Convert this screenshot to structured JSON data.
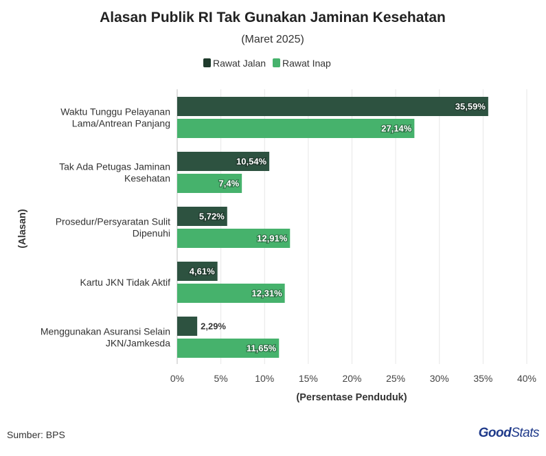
{
  "chart_data": {
    "type": "bar",
    "orientation": "horizontal",
    "title": "Alasan Publik RI Tak Gunakan Jaminan Kesehatan",
    "subtitle": "(Maret 2025)",
    "xlabel": "(Persentase Penduduk)",
    "ylabel": "(Alasan)",
    "xlim": [
      0,
      40
    ],
    "x_ticks": [
      "0%",
      "5%",
      "10%",
      "15%",
      "20%",
      "25%",
      "30%",
      "35%",
      "40%"
    ],
    "grid": true,
    "legend_position": "top-center",
    "categories": [
      [
        "Waktu Tunggu Pelayanan",
        "Lama/Antrean Panjang"
      ],
      [
        "Tak Ada Petugas Jaminan",
        "Kesehatan"
      ],
      [
        "Prosedur/Persyaratan Sulit",
        "Dipenuhi"
      ],
      [
        "Kartu JKN Tidak Aktif"
      ],
      [
        "Menggunakan Asuransi Selain",
        "JKN/Jamkesda"
      ]
    ],
    "series": [
      {
        "name": "Rawat Jalan",
        "color": "#2d5240",
        "values": [
          35.59,
          10.54,
          5.72,
          4.61,
          2.29
        ],
        "labels": [
          "35,59%",
          "10,54%",
          "5,72%",
          "4,61%",
          "2,29%"
        ]
      },
      {
        "name": "Rawat Inap",
        "color": "#46b26c",
        "values": [
          27.14,
          7.4,
          12.91,
          12.31,
          11.65
        ],
        "labels": [
          "27,14%",
          "7,4%",
          "12,91%",
          "12,31%",
          "11,65%"
        ]
      }
    ]
  },
  "legend_colors": {
    "Rawat Jalan": "#1f3b2c",
    "Rawat Inap": "#46b26c"
  },
  "footer": {
    "source": "Sumber: BPS",
    "logo_good": "Good",
    "logo_stats": "Stats"
  }
}
